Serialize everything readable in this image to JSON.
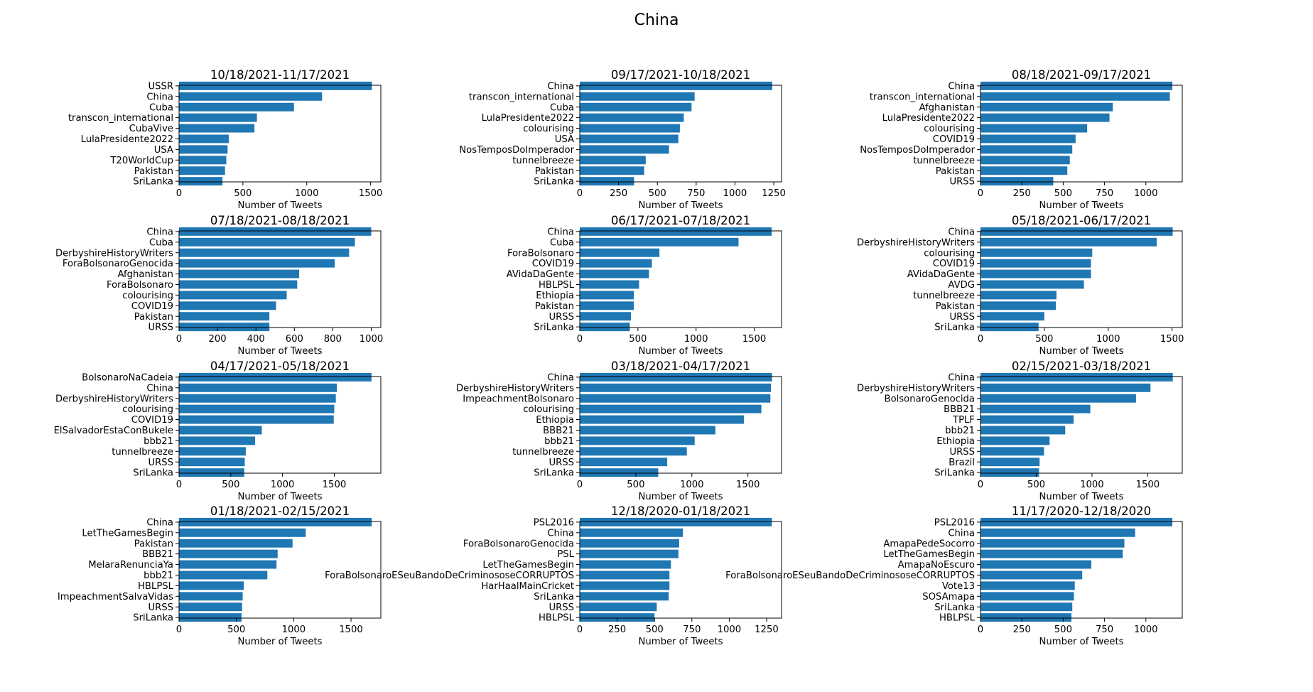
{
  "figure": {
    "suptitle": "China",
    "bar_color": "#1f77b4"
  },
  "chart_data": [
    {
      "type": "bar",
      "orientation": "horizontal",
      "title": "10/18/2021-11/17/2021",
      "xlabel": "Number of Tweets",
      "xlim": [
        0,
        1580
      ],
      "xticks": [
        0,
        500,
        1000,
        1500
      ],
      "categories": [
        "USSR",
        "China",
        "Cuba",
        "transcon_international",
        "CubaVive",
        "LulaPresidente2022",
        "USA",
        "T20WorldCup",
        "Pakistan",
        "SriLanka"
      ],
      "values": [
        1510,
        1120,
        900,
        610,
        590,
        390,
        380,
        370,
        360,
        340
      ]
    },
    {
      "type": "bar",
      "orientation": "horizontal",
      "title": "09/17/2021-10/18/2021",
      "xlabel": "Number of Tweets",
      "xlim": [
        0,
        1300
      ],
      "xticks": [
        0,
        250,
        500,
        750,
        1000,
        1250
      ],
      "categories": [
        "China",
        "transcon_international",
        "Cuba",
        "LulaPresidente2022",
        "colourising",
        "USA",
        "NosTemposDoImperador",
        "tunnelbreeze",
        "Pakistan",
        "SriLanka"
      ],
      "values": [
        1240,
        740,
        720,
        670,
        645,
        635,
        575,
        425,
        415,
        350
      ]
    },
    {
      "type": "bar",
      "orientation": "horizontal",
      "title": "08/18/2021-09/17/2021",
      "xlabel": "Number of Tweets",
      "xlim": [
        0,
        1220
      ],
      "xticks": [
        0,
        250,
        500,
        750,
        1000
      ],
      "categories": [
        "China",
        "transcon_international",
        "Afghanistan",
        "LulaPresidente2022",
        "colourising",
        "COVID19",
        "NosTemposDoImperador",
        "tunnelbreeze",
        "Pakistan",
        "URSS"
      ],
      "values": [
        1160,
        1145,
        800,
        780,
        645,
        575,
        555,
        540,
        525,
        440
      ]
    },
    {
      "type": "bar",
      "orientation": "horizontal",
      "title": "07/18/2021-08/18/2021",
      "xlabel": "Number of Tweets",
      "xlim": [
        0,
        1050
      ],
      "xticks": [
        0,
        200,
        400,
        600,
        800,
        1000
      ],
      "categories": [
        "China",
        "Cuba",
        "DerbyshireHistoryWriters",
        "ForaBolsonaroGenocida",
        "Afghanistan",
        "ForaBolsonaro",
        "colourising",
        "COVID19",
        "Pakistan",
        "URSS"
      ],
      "values": [
        1000,
        915,
        885,
        810,
        625,
        615,
        560,
        505,
        470,
        470
      ]
    },
    {
      "type": "bar",
      "orientation": "horizontal",
      "title": "06/17/2021-07/18/2021",
      "xlabel": "Number of Tweets",
      "xlim": [
        0,
        1735
      ],
      "xticks": [
        0,
        500,
        1000,
        1500
      ],
      "categories": [
        "China",
        "Cuba",
        "ForaBolsonaro",
        "COVID19",
        "AVidaDaGente",
        "HBLPSL",
        "Ethiopia",
        "Pakistan",
        "URSS",
        "SriLanka"
      ],
      "values": [
        1650,
        1365,
        685,
        620,
        595,
        510,
        465,
        465,
        440,
        430
      ]
    },
    {
      "type": "bar",
      "orientation": "horizontal",
      "title": "05/18/2021-06/17/2021",
      "xlabel": "Number of Tweets",
      "xlim": [
        0,
        1580
      ],
      "xticks": [
        0,
        500,
        1000,
        1500
      ],
      "categories": [
        "China",
        "DerbyshireHistoryWriters",
        "colourising",
        "COVID19",
        "AVidaDaGente",
        "AVDG",
        "tunnelbreeze",
        "Pakistan",
        "URSS",
        "SriLanka"
      ],
      "values": [
        1505,
        1380,
        875,
        865,
        865,
        810,
        595,
        590,
        500,
        455
      ]
    },
    {
      "type": "bar",
      "orientation": "horizontal",
      "title": "04/17/2021-05/18/2021",
      "xlabel": "Number of Tweets",
      "xlim": [
        0,
        1950
      ],
      "xticks": [
        0,
        500,
        1000,
        1500
      ],
      "categories": [
        "BolsonaroNaCadeia",
        "China",
        "DerbyshireHistoryWriters",
        "colourising",
        "COVID19",
        "ElSalvadorEstaConBukele",
        "bbb21",
        "tunnelbreeze",
        "URSS",
        "SriLanka"
      ],
      "values": [
        1860,
        1525,
        1515,
        1500,
        1495,
        800,
        735,
        645,
        635,
        630
      ]
    },
    {
      "type": "bar",
      "orientation": "horizontal",
      "title": "03/18/2021-04/17/2021",
      "xlabel": "Number of Tweets",
      "xlim": [
        0,
        1800
      ],
      "xticks": [
        0,
        500,
        1000,
        1500
      ],
      "categories": [
        "China",
        "DerbyshireHistoryWriters",
        "ImpeachmentBolsonaro",
        "colourising",
        "Ethiopia",
        "BBB21",
        "bbb21",
        "tunnelbreeze",
        "URSS",
        "SriLanka"
      ],
      "values": [
        1715,
        1705,
        1700,
        1620,
        1465,
        1210,
        1025,
        955,
        780,
        700
      ]
    },
    {
      "type": "bar",
      "orientation": "horizontal",
      "title": "02/15/2021-03/18/2021",
      "xlabel": "Number of Tweets",
      "xlim": [
        0,
        1810
      ],
      "xticks": [
        0,
        500,
        1000,
        1500
      ],
      "categories": [
        "China",
        "DerbyshireHistoryWriters",
        "BolsonaroGenocida",
        "BBB21",
        "TPLF",
        "bbb21",
        "Ethiopia",
        "URSS",
        "Brazil",
        "SriLanka"
      ],
      "values": [
        1725,
        1525,
        1395,
        985,
        835,
        760,
        620,
        570,
        530,
        525
      ]
    },
    {
      "type": "bar",
      "orientation": "horizontal",
      "title": "01/18/2021-02/15/2021",
      "xlabel": "Number of Tweets",
      "xlim": [
        0,
        1760
      ],
      "xticks": [
        0,
        500,
        1000,
        1500
      ],
      "categories": [
        "China",
        "LetTheGamesBegin",
        "Pakistan",
        "BBB21",
        "MelaraRenunciaYa",
        "bbb21",
        "HBLPSL",
        "ImpeachmentSalvaVidas",
        "URSS",
        "SriLanka"
      ],
      "values": [
        1680,
        1105,
        990,
        860,
        850,
        770,
        565,
        555,
        550,
        545
      ]
    },
    {
      "type": "bar",
      "orientation": "horizontal",
      "title": "12/18/2020-01/18/2021",
      "xlabel": "Number of Tweets",
      "xlim": [
        0,
        1350
      ],
      "xticks": [
        0,
        250,
        500,
        750,
        1000,
        1250
      ],
      "categories": [
        "PSL2016",
        "China",
        "ForaBolsonaroGenocida",
        "PSL",
        "LetTheGamesBegin",
        "ForaBolsonaroESeuBandoDeCriminososeCORRUPTOS",
        "HarHaalMainCricket",
        "SriLanka",
        "URSS",
        "HBLPSL"
      ],
      "values": [
        1285,
        690,
        665,
        660,
        610,
        600,
        600,
        595,
        515,
        500
      ]
    },
    {
      "type": "bar",
      "orientation": "horizontal",
      "title": "11/17/2020-12/18/2020",
      "xlabel": "Number of Tweets",
      "xlim": [
        0,
        1220
      ],
      "xticks": [
        0,
        250,
        500,
        750,
        1000
      ],
      "categories": [
        "PSL2016",
        "China",
        "AmapaPedeSocorro",
        "LetTheGamesBegin",
        "AmapaNoEscuro",
        "ForaBolsonaroESeuBandoDeCriminososeCORRUPTOS",
        "Vote13",
        "SOSAmapa",
        "SriLanka",
        "HBLPSL"
      ],
      "values": [
        1160,
        935,
        870,
        860,
        670,
        615,
        570,
        565,
        555,
        550
      ]
    }
  ]
}
